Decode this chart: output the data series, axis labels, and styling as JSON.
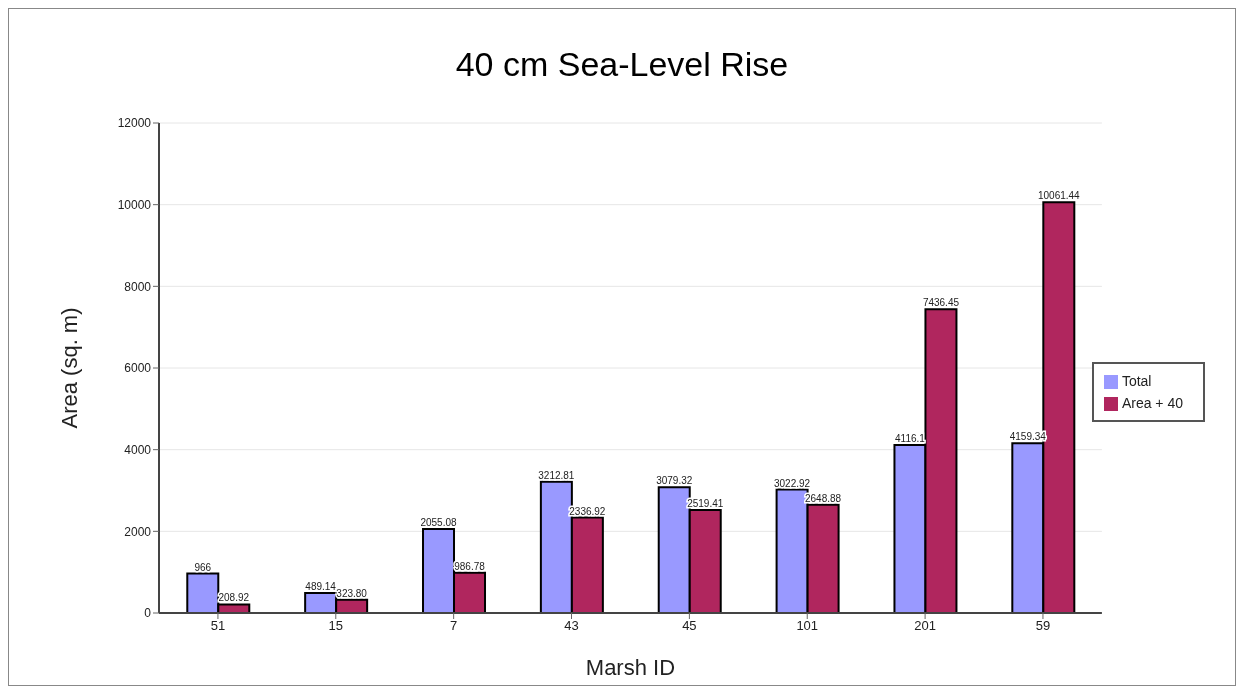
{
  "chart_data": {
    "type": "bar",
    "title": "40 cm Sea-Level Rise",
    "xlabel": "Marsh ID",
    "ylabel": "Area (sq. m)",
    "categories": [
      "51",
      "15",
      "7",
      "43",
      "45",
      "101",
      "201",
      "59"
    ],
    "series": [
      {
        "name": "Total",
        "color": "#9999ff",
        "values": [
          966,
          489.14,
          2055.08,
          3212.81,
          3079.32,
          3022.92,
          4116.1,
          4159.34
        ],
        "value_labels": [
          "966",
          "489.14",
          "2055.08",
          "3212.81",
          "3079.32",
          "3022.92",
          "4116.1",
          "4159.34"
        ]
      },
      {
        "name": "Area + 40",
        "color": "#b0265e",
        "values": [
          208.92,
          323.8,
          986.78,
          2336.92,
          2519.41,
          2648.88,
          7436.45,
          10061.44
        ],
        "value_labels": [
          "208.92",
          "323.80",
          "986.78",
          "2336.92",
          "2519.41",
          "2648.88",
          "7436.45",
          "10061.44"
        ]
      }
    ],
    "ylim": [
      0,
      12000
    ],
    "yticks": [
      0,
      2000,
      4000,
      6000,
      8000,
      10000,
      12000
    ],
    "grid": "y",
    "legend": "right"
  }
}
